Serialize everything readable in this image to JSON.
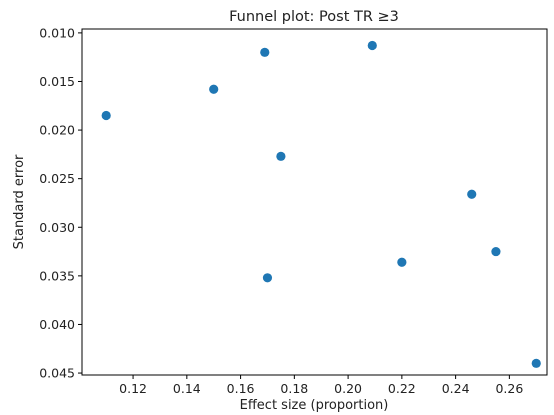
{
  "chart_data": {
    "type": "scatter",
    "title": "Funnel plot: Post TR ≥3",
    "xlabel": "Effect size (proportion)",
    "ylabel": "Standard error",
    "xlim": [
      0.101,
      0.274
    ],
    "ylim": [
      0.0452,
      0.0096
    ],
    "y_inverted": true,
    "grid": false,
    "xticks": [
      0.12,
      0.14,
      0.16,
      0.18,
      0.2,
      0.22,
      0.24,
      0.26
    ],
    "xtick_labels": [
      "0.12",
      "0.14",
      "0.16",
      "0.18",
      "0.20",
      "0.22",
      "0.24",
      "0.26"
    ],
    "yticks": [
      0.01,
      0.015,
      0.02,
      0.025,
      0.03,
      0.035,
      0.04,
      0.045
    ],
    "ytick_labels": [
      "0.010",
      "0.015",
      "0.020",
      "0.025",
      "0.030",
      "0.035",
      "0.040",
      "0.045"
    ],
    "marker_color": "#1f77b4",
    "points": [
      {
        "x": 0.11,
        "y": 0.0185
      },
      {
        "x": 0.15,
        "y": 0.0158
      },
      {
        "x": 0.169,
        "y": 0.012
      },
      {
        "x": 0.175,
        "y": 0.0227
      },
      {
        "x": 0.17,
        "y": 0.0352
      },
      {
        "x": 0.209,
        "y": 0.0113
      },
      {
        "x": 0.22,
        "y": 0.0336
      },
      {
        "x": 0.246,
        "y": 0.0266
      },
      {
        "x": 0.255,
        "y": 0.0325
      },
      {
        "x": 0.27,
        "y": 0.044
      }
    ]
  }
}
